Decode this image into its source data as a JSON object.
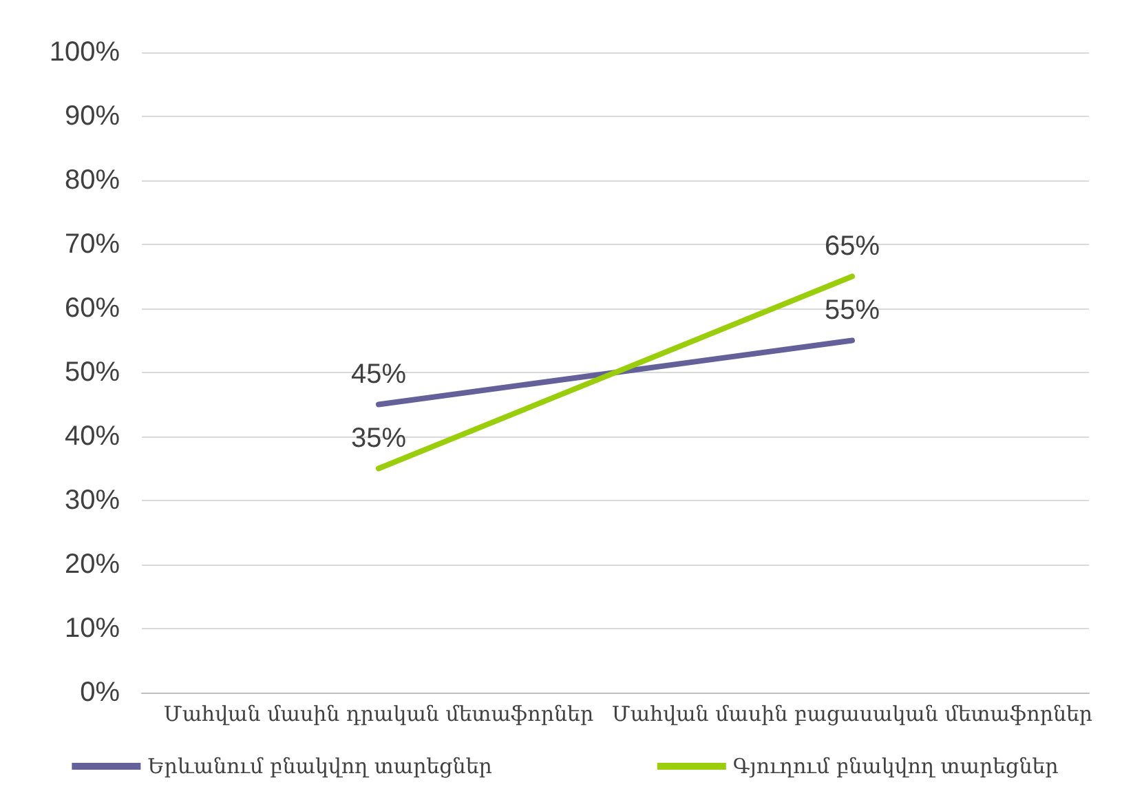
{
  "chart_data": {
    "type": "line",
    "categories": [
      "Մահվան մասին դրական մետաֆորներ",
      "Մահվան մասին բացասական մետաֆորներ"
    ],
    "series": [
      {
        "name": "Երևանում բնակվող տարեցներ",
        "color": "#64609a",
        "values": [
          45,
          55
        ],
        "value_labels": [
          "45%",
          "55%"
        ]
      },
      {
        "name": "Գյուղում բնակվող տարեցներ",
        "color": "#9acd0a",
        "values": [
          35,
          65
        ],
        "value_labels": [
          "35%",
          "65%"
        ]
      }
    ],
    "ylim": [
      0,
      100
    ],
    "yticks": [
      {
        "value": 0,
        "label": "0%"
      },
      {
        "value": 10,
        "label": "10%"
      },
      {
        "value": 20,
        "label": "20%"
      },
      {
        "value": 30,
        "label": "30%"
      },
      {
        "value": 40,
        "label": "40%"
      },
      {
        "value": 50,
        "label": "50%"
      },
      {
        "value": 60,
        "label": "60%"
      },
      {
        "value": 70,
        "label": "70%"
      },
      {
        "value": 80,
        "label": "80%"
      },
      {
        "value": 90,
        "label": "90%"
      },
      {
        "value": 100,
        "label": "100%"
      }
    ],
    "grid": "y",
    "legend": "bottom",
    "marker": "none",
    "line_style": "solid"
  }
}
